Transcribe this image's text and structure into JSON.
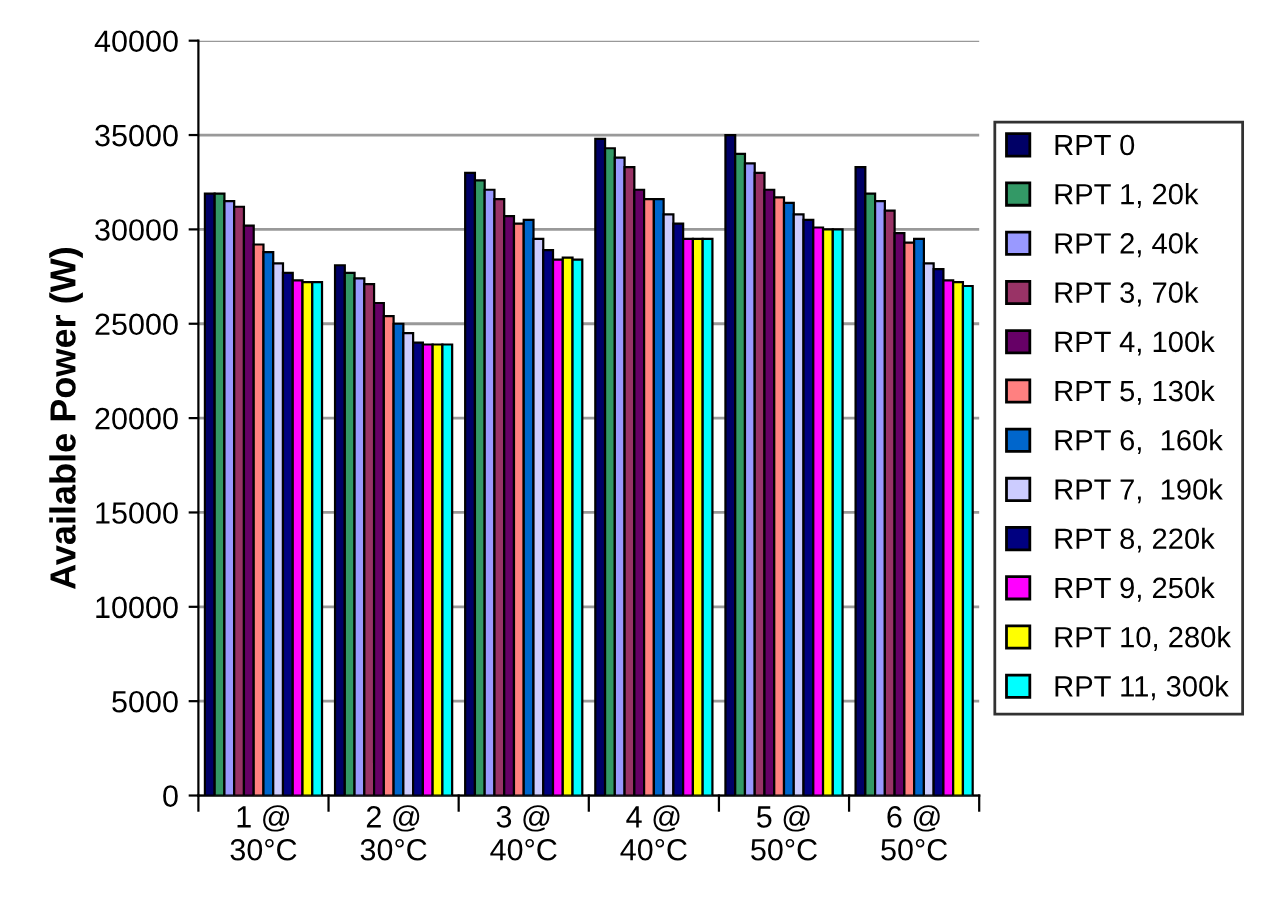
{
  "chart_data": {
    "type": "bar",
    "ylabel": "Available Power (W)",
    "categories": [
      "1 @\n30°C",
      "2 @\n30°C",
      "3 @\n40°C",
      "4 @\n40°C",
      "5 @\n50°C",
      "6 @\n50°C"
    ],
    "series": [
      {
        "name": "RPT 0",
        "color": "#000066",
        "values": [
          31900,
          28100,
          33000,
          34800,
          35000,
          33300
        ]
      },
      {
        "name": "RPT 1, 20k",
        "color": "#339966",
        "values": [
          31900,
          27700,
          32600,
          34300,
          34000,
          31900
        ]
      },
      {
        "name": "RPT 2, 40k",
        "color": "#9999ff",
        "values": [
          31500,
          27400,
          32100,
          33800,
          33500,
          31500
        ]
      },
      {
        "name": "RPT 3, 70k",
        "color": "#993366",
        "values": [
          31200,
          27100,
          31600,
          33300,
          33000,
          31000
        ]
      },
      {
        "name": "RPT 4, 100k",
        "color": "#660066",
        "values": [
          30200,
          26100,
          30700,
          32100,
          32100,
          29800
        ]
      },
      {
        "name": "RPT 5, 130k",
        "color": "#ff8080",
        "values": [
          29200,
          25400,
          30300,
          31600,
          31700,
          29300
        ]
      },
      {
        "name": "RPT 6,  160k",
        "color": "#0066cc",
        "values": [
          28800,
          25000,
          30500,
          31600,
          31400,
          29500
        ]
      },
      {
        "name": "RPT 7,  190k",
        "color": "#ccccff",
        "values": [
          28200,
          24500,
          29500,
          30800,
          30800,
          28200
        ]
      },
      {
        "name": "RPT 8, 220k",
        "color": "#000080",
        "values": [
          27700,
          24000,
          28900,
          30300,
          30500,
          27900
        ]
      },
      {
        "name": "RPT 9, 250k",
        "color": "#ff00ff",
        "values": [
          27300,
          23900,
          28400,
          29500,
          30100,
          27300
        ]
      },
      {
        "name": "RPT 10, 280k",
        "color": "#ffff00",
        "values": [
          27200,
          23900,
          28500,
          29500,
          30000,
          27200
        ]
      },
      {
        "name": "RPT 11, 300k",
        "color": "#00ffff",
        "values": [
          27200,
          23900,
          28400,
          29500,
          30000,
          27000
        ]
      }
    ],
    "ylim": [
      0,
      40000
    ],
    "yticks": [
      0,
      5000,
      10000,
      15000,
      20000,
      25000,
      30000,
      35000,
      40000
    ],
    "grid": "y",
    "legend": "right"
  }
}
